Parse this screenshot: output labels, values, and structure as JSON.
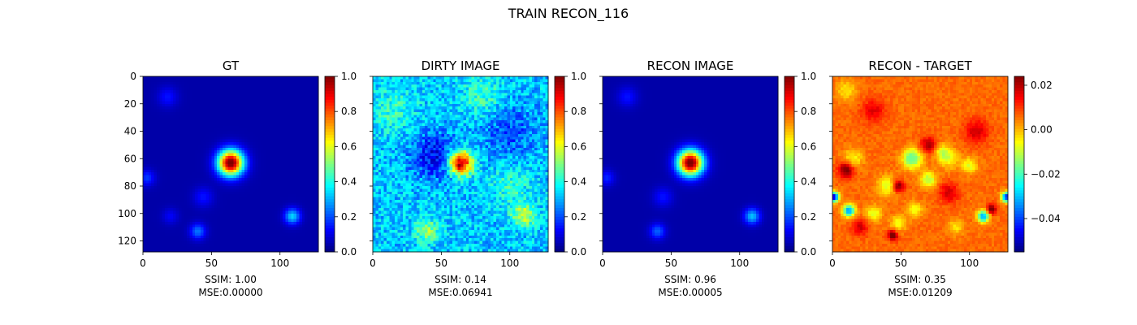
{
  "figure": {
    "title": "TRAIN RECON_116"
  },
  "colormap": "jet",
  "chart_data": [
    {
      "type": "heatmap",
      "title": "GT",
      "caption": [
        "SSIM: 1.00",
        "MSE:0.00000"
      ],
      "xlim": [
        0,
        128
      ],
      "ylim": [
        128,
        0
      ],
      "xticks": [
        0,
        50,
        100
      ],
      "yticks": [
        0,
        20,
        40,
        60,
        80,
        100,
        120
      ],
      "show_ytick_labels": true,
      "colorbar": {
        "vmin": 0.0,
        "vmax": 1.0,
        "ticks": [
          "0.0",
          "0.2",
          "0.4",
          "0.6",
          "0.8",
          "1.0"
        ]
      },
      "background_level": 0.04,
      "blobs": [
        {
          "x": 64,
          "y": 63,
          "value": 1.0,
          "sigma": 6.5
        },
        {
          "x": 109,
          "y": 102,
          "value": 0.3,
          "sigma": 4
        },
        {
          "x": 40,
          "y": 113,
          "value": 0.2,
          "sigma": 4
        },
        {
          "x": 3,
          "y": 74,
          "value": 0.14,
          "sigma": 4
        },
        {
          "x": 18,
          "y": 15,
          "value": 0.1,
          "sigma": 5
        },
        {
          "x": 44,
          "y": 88,
          "value": 0.1,
          "sigma": 5
        },
        {
          "x": 20,
          "y": 102,
          "value": 0.08,
          "sigma": 4
        }
      ]
    },
    {
      "type": "heatmap",
      "title": "DIRTY IMAGE",
      "caption": [
        "SSIM: 0.14",
        "MSE:0.06941"
      ],
      "xlim": [
        0,
        128
      ],
      "ylim": [
        128,
        0
      ],
      "xticks": [
        0,
        50,
        100
      ],
      "yticks": [
        0,
        20,
        40,
        60,
        80,
        100,
        120
      ],
      "show_ytick_labels": false,
      "colorbar": {
        "vmin": 0.0,
        "vmax": 1.0,
        "ticks": [
          "0.0",
          "0.2",
          "0.4",
          "0.6",
          "0.8",
          "1.0"
        ]
      },
      "background_level": 0.32,
      "blobs": [
        {
          "x": 64,
          "y": 63,
          "value": 0.68,
          "sigma": 6
        },
        {
          "x": 110,
          "y": 101,
          "value": 0.25,
          "sigma": 6
        },
        {
          "x": 40,
          "y": 113,
          "value": 0.2,
          "sigma": 6
        },
        {
          "x": 45,
          "y": 58,
          "value": -0.2,
          "sigma": 12
        },
        {
          "x": 100,
          "y": 40,
          "value": -0.12,
          "sigma": 14
        },
        {
          "x": 15,
          "y": 25,
          "value": 0.1,
          "sigma": 12
        },
        {
          "x": 80,
          "y": 15,
          "value": 0.12,
          "sigma": 10
        },
        {
          "x": 100,
          "y": 80,
          "value": 0.1,
          "sigma": 10
        }
      ],
      "noise_amplitude": 0.18
    },
    {
      "type": "heatmap",
      "title": "RECON IMAGE",
      "caption": [
        "SSIM: 0.96",
        "MSE:0.00005"
      ],
      "xlim": [
        0,
        128
      ],
      "ylim": [
        128,
        0
      ],
      "xticks": [
        0,
        50,
        100
      ],
      "yticks": [
        0,
        20,
        40,
        60,
        80,
        100,
        120
      ],
      "show_ytick_labels": false,
      "colorbar": {
        "vmin": 0.0,
        "vmax": 1.0,
        "ticks": [
          "0.0",
          "0.2",
          "0.4",
          "0.6",
          "0.8",
          "1.0"
        ]
      },
      "background_level": 0.04,
      "blobs": [
        {
          "x": 64,
          "y": 63,
          "value": 1.0,
          "sigma": 6.5
        },
        {
          "x": 109,
          "y": 102,
          "value": 0.28,
          "sigma": 4
        },
        {
          "x": 40,
          "y": 113,
          "value": 0.18,
          "sigma": 4
        },
        {
          "x": 3,
          "y": 74,
          "value": 0.12,
          "sigma": 4
        },
        {
          "x": 18,
          "y": 15,
          "value": 0.1,
          "sigma": 5
        },
        {
          "x": 44,
          "y": 88,
          "value": 0.1,
          "sigma": 5
        }
      ]
    },
    {
      "type": "heatmap",
      "title": "RECON - TARGET",
      "caption": [
        "SSIM: 0.35",
        "MSE:0.01209"
      ],
      "xlim": [
        0,
        128
      ],
      "ylim": [
        128,
        0
      ],
      "xticks": [
        0,
        50,
        100
      ],
      "yticks": [
        0,
        20,
        40,
        60,
        80,
        100,
        120
      ],
      "show_ytick_labels": false,
      "colorbar": {
        "vmin": -0.055,
        "vmax": 0.024,
        "ticks": [
          "−0.04",
          "−0.02",
          "0.00",
          "0.02"
        ],
        "tick_values": [
          -0.04,
          -0.02,
          0.0,
          0.02
        ]
      },
      "background_level": 0.006,
      "blobs": [
        {
          "x": 1,
          "y": 88,
          "value": -0.055,
          "sigma": 2.5
        },
        {
          "x": 127,
          "y": 88,
          "value": -0.05,
          "sigma": 2.5
        },
        {
          "x": 12,
          "y": 98,
          "value": -0.04,
          "sigma": 3
        },
        {
          "x": 110,
          "y": 102,
          "value": -0.04,
          "sigma": 3
        },
        {
          "x": 58,
          "y": 60,
          "value": -0.025,
          "sigma": 5
        },
        {
          "x": 70,
          "y": 75,
          "value": -0.018,
          "sigma": 4
        },
        {
          "x": 40,
          "y": 80,
          "value": -0.015,
          "sigma": 5
        },
        {
          "x": 85,
          "y": 60,
          "value": -0.012,
          "sigma": 5
        },
        {
          "x": 15,
          "y": 60,
          "value": -0.012,
          "sigma": 5
        },
        {
          "x": 30,
          "y": 100,
          "value": -0.015,
          "sigma": 4
        },
        {
          "x": 48,
          "y": 107,
          "value": -0.012,
          "sigma": 4
        },
        {
          "x": 60,
          "y": 97,
          "value": -0.012,
          "sigma": 4
        },
        {
          "x": 80,
          "y": 55,
          "value": -0.012,
          "sigma": 4
        },
        {
          "x": 100,
          "y": 65,
          "value": -0.014,
          "sigma": 4
        },
        {
          "x": 10,
          "y": 10,
          "value": -0.01,
          "sigma": 5
        },
        {
          "x": 90,
          "y": 110,
          "value": -0.01,
          "sigma": 4
        },
        {
          "x": 44,
          "y": 116,
          "value": 0.024,
          "sigma": 2.5
        },
        {
          "x": 48,
          "y": 80,
          "value": 0.022,
          "sigma": 3
        },
        {
          "x": 116,
          "y": 97,
          "value": 0.022,
          "sigma": 2.5
        },
        {
          "x": 10,
          "y": 68,
          "value": 0.02,
          "sigma": 4
        },
        {
          "x": 70,
          "y": 50,
          "value": 0.015,
          "sigma": 4
        },
        {
          "x": 85,
          "y": 85,
          "value": 0.012,
          "sigma": 5
        },
        {
          "x": 30,
          "y": 25,
          "value": 0.01,
          "sigma": 6
        },
        {
          "x": 105,
          "y": 40,
          "value": 0.012,
          "sigma": 6
        },
        {
          "x": 20,
          "y": 110,
          "value": 0.012,
          "sigma": 4
        }
      ],
      "noise_amplitude": 0.004
    }
  ]
}
